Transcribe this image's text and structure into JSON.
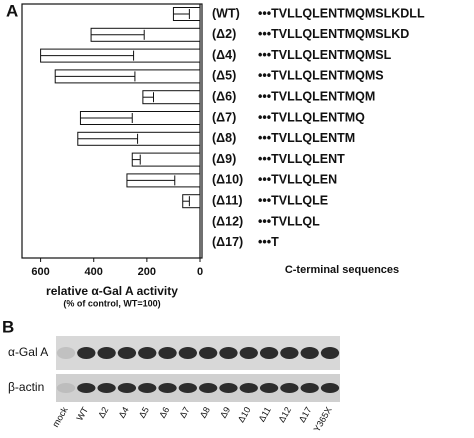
{
  "chart_data": {
    "type": "bar",
    "orientation": "horizontal",
    "x_reversed": true,
    "panel_label": "A",
    "categories": [
      "(WT)",
      "(Δ2)",
      "(Δ4)",
      "(Δ5)",
      "(Δ6)",
      "(Δ7)",
      "(Δ8)",
      "(Δ9)",
      "(Δ10)",
      "(Δ11)",
      "(Δ12)",
      "(Δ17)"
    ],
    "sequences": [
      "•••TVLLQLENTMQMSLKDLL",
      "•••TVLLQLENTMQMSLKD",
      "•••TVLLQLENTMQMSL",
      "•••TVLLQLENTMQMS",
      "•••TVLLQLENTMQM",
      "•••TVLLQLENTMQ",
      "•••TVLLQLENTM",
      "•••TVLLQLENT",
      "•••TVLLQLEN",
      "•••TVLLQLE",
      "•••TVLLQL",
      "•••T"
    ],
    "sequence_label": "C-terminal sequences",
    "values": [
      100,
      410,
      600,
      545,
      215,
      450,
      460,
      255,
      275,
      65,
      0,
      0
    ],
    "errors": [
      60,
      200,
      350,
      300,
      40,
      195,
      225,
      30,
      180,
      25,
      0,
      0
    ],
    "color": "#ffffff",
    "xlabel": "relative α-Gal A activity",
    "xlabel_note": "(% of control, WT=100)",
    "xlim": [
      0,
      670
    ],
    "xticks": [
      600,
      400,
      200,
      0
    ]
  },
  "blot": {
    "panel_label": "B",
    "rows": [
      "α-Gal A",
      "β-actin"
    ],
    "lanes": [
      "mock",
      "WT",
      "Δ2",
      "Δ4",
      "Δ5",
      "Δ6",
      "Δ7",
      "Δ8",
      "Δ9",
      "Δ10",
      "Δ11",
      "Δ12",
      "Δ17",
      "Y365X"
    ]
  }
}
